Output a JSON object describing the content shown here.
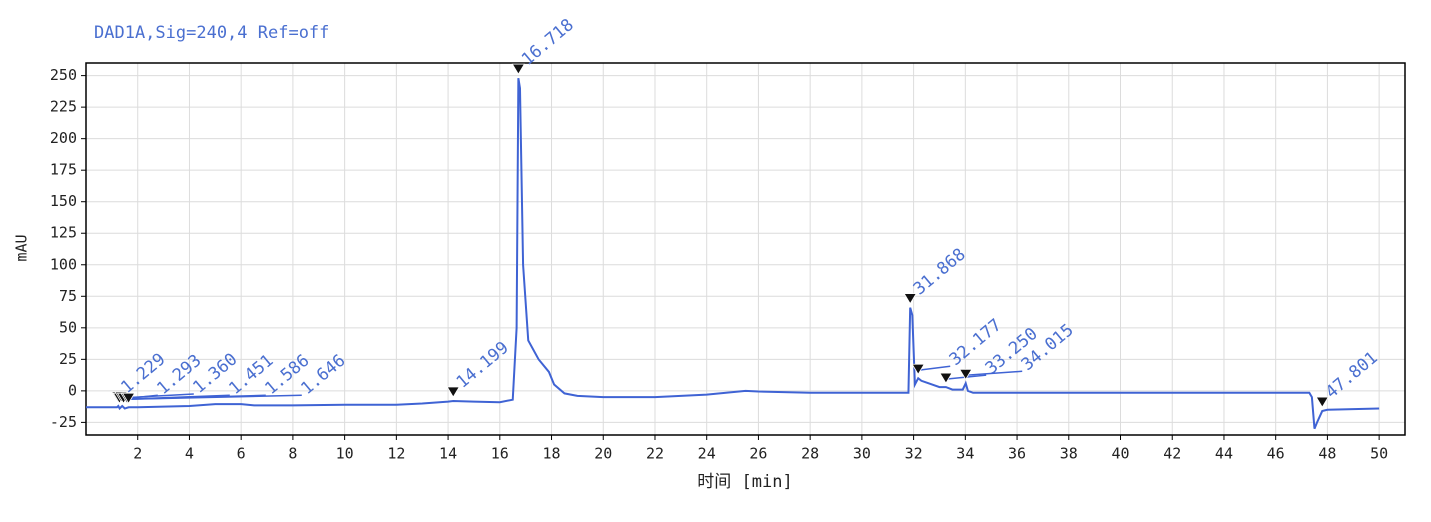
{
  "chart_data": {
    "type": "line",
    "title": "DAD1A,Sig=240,4  Ref=off",
    "x_label": "时间 [min]",
    "y_label": "mAU",
    "color": "#3f63d4",
    "grid": true,
    "xlim": [
      0,
      51
    ],
    "ylim": [
      -35,
      260
    ],
    "xticks": [
      2,
      4,
      6,
      8,
      10,
      12,
      14,
      16,
      18,
      20,
      22,
      24,
      26,
      28,
      30,
      32,
      34,
      36,
      38,
      40,
      42,
      44,
      46,
      48,
      50
    ],
    "yticks": [
      -25,
      0,
      25,
      50,
      75,
      100,
      125,
      150,
      175,
      200,
      225,
      250
    ],
    "x": [
      0,
      1.2,
      1.25,
      1.3,
      1.4,
      1.5,
      1.65,
      2,
      4,
      5,
      6,
      6.5,
      8,
      10,
      12,
      13,
      14,
      14.2,
      15,
      16,
      16.5,
      16.65,
      16.718,
      16.78,
      16.9,
      17.1,
      17.5,
      17.9,
      18.1,
      18.5,
      19,
      20,
      22,
      24,
      25.5,
      26,
      28,
      31.8,
      31.868,
      31.95,
      32.05,
      32.177,
      32.3,
      33,
      33.25,
      33.5,
      33.9,
      34.015,
      34.1,
      34.3,
      36,
      47.3,
      47.4,
      47.5,
      47.6,
      47.8,
      48,
      50
    ],
    "values": [
      -13,
      -13,
      -12,
      -14,
      -12,
      -14,
      -13,
      -13,
      -12,
      -10.5,
      -10.5,
      -11.5,
      -11.5,
      -11,
      -11,
      -10,
      -8.5,
      -8,
      -8.5,
      -9,
      -7,
      50,
      248,
      240,
      100,
      40,
      25,
      15,
      5,
      -2,
      -4,
      -5,
      -5,
      -3,
      0,
      -0.5,
      -1.5,
      -1.5,
      66,
      60,
      5,
      10,
      8,
      3,
      3,
      1,
      1,
      6,
      0,
      -1.5,
      -1.5,
      -1.5,
      -5,
      -30,
      -25,
      -16,
      -15,
      -14
    ],
    "peaks": {
      "x": [
        1.229,
        1.293,
        1.36,
        1.451,
        1.586,
        1.646,
        14.199,
        16.718,
        31.868,
        32.177,
        33.25,
        34.015,
        47.801
      ],
      "y": [
        -12,
        -13,
        -12,
        -13,
        -13,
        -13,
        -8,
        248,
        66,
        10,
        3,
        6,
        -16
      ],
      "labels": [
        "1.229",
        "1.293",
        "1.360",
        "1.451",
        "1.586",
        "1.646",
        "14.199",
        "16.718",
        "31.868",
        "32.177",
        "33.250",
        "34.015",
        "47.801"
      ]
    }
  }
}
